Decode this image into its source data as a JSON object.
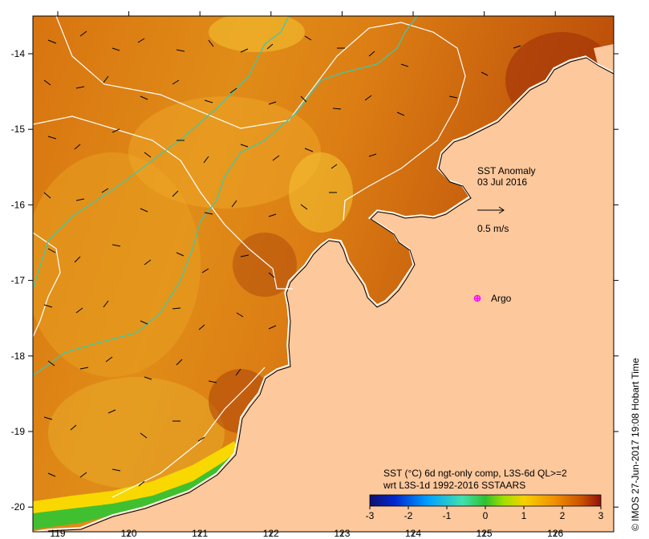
{
  "map": {
    "x_ticks": [
      "119",
      "120",
      "121",
      "122",
      "123",
      "124",
      "125",
      "126"
    ],
    "y_ticks": [
      "-14",
      "-15",
      "-16",
      "-17",
      "-18",
      "-19",
      "-20"
    ],
    "land_color": "#fcc89c",
    "anomaly_color_warm": "#c8600a",
    "anomaly_color_cool": "#f0a020",
    "contour_line_colors": [
      "#ffffff",
      "#3cc8a0"
    ]
  },
  "annotation": {
    "title_line1": "SST Anomaly",
    "title_line2": "03 Jul 2016",
    "scale_arrow_label": "0.5 m/s",
    "argo_label": "Argo",
    "argo_marker_color": "#ff00ff"
  },
  "colorbar": {
    "caption_line1": "SST (°C) 6d ngt-only comp, L3S-6d QL>=2",
    "caption_line2": "wrt L3S-1d 1992-2016 SSTAARS",
    "tick_labels": [
      "-3",
      "-2",
      "-1",
      "0",
      "1",
      "2",
      "3"
    ],
    "min": -3,
    "max": 3,
    "colors": [
      "#101070",
      "#0028d0",
      "#00a0ff",
      "#40e0b0",
      "#30c030",
      "#a0e000",
      "#f8d000",
      "#f09000",
      "#c85000",
      "#901010"
    ]
  },
  "credit": "© IMOS 27-Jun-2017 19:08 Hobart Time"
}
